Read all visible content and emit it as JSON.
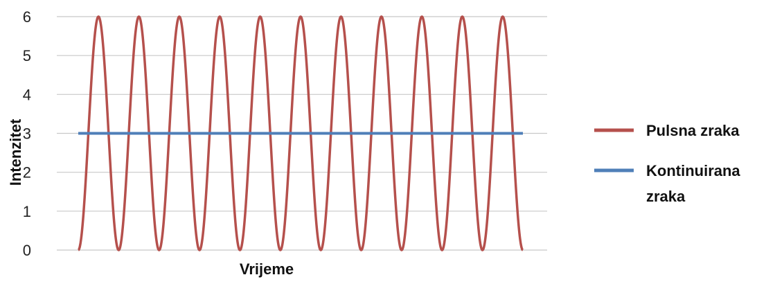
{
  "chart_data": {
    "type": "line",
    "title": "",
    "xlabel": "Vrijeme",
    "ylabel": "Intenzitet",
    "ylim": [
      0,
      6
    ],
    "yticks": [
      "0",
      "1",
      "2",
      "3",
      "4",
      "5",
      "6"
    ],
    "x": [
      0,
      11
    ],
    "grid": true,
    "legend_position": "right",
    "series": [
      {
        "name": "Pulsna zraka",
        "color": "#b5504c",
        "shape": "sinusoid",
        "cycles": 11,
        "min": 0,
        "max": 6
      },
      {
        "name": "Kontinuirana zraka",
        "name_lines": [
          "Kontinuirana",
          "zraka"
        ],
        "color": "#4f7fb8",
        "shape": "constant",
        "value": 3
      }
    ]
  }
}
